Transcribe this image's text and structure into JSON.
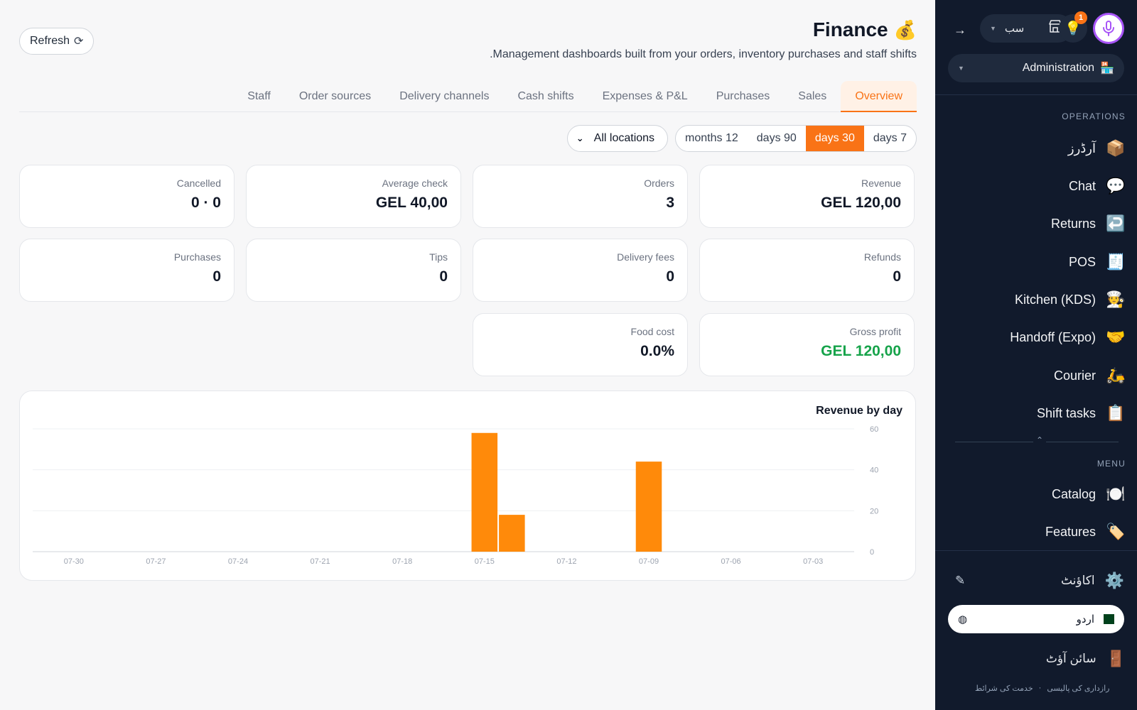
{
  "header": {
    "refresh_label": "Refresh",
    "title": "Finance",
    "title_emoji": "💰",
    "subtitle": ".Management dashboards built from your orders, inventory purchases and staff shifts"
  },
  "tabs": [
    {
      "label": "Staff",
      "active": false
    },
    {
      "label": "Order sources",
      "active": false
    },
    {
      "label": "Delivery channels",
      "active": false
    },
    {
      "label": "Cash shifts",
      "active": false
    },
    {
      "label": "Expenses & P&L",
      "active": false
    },
    {
      "label": "Purchases",
      "active": false
    },
    {
      "label": "Sales",
      "active": false
    },
    {
      "label": "Overview",
      "active": true
    }
  ],
  "filters": {
    "location": "All locations",
    "ranges": [
      {
        "label": "months 12",
        "active": false
      },
      {
        "label": "days 90",
        "active": false
      },
      {
        "label": "days 30",
        "active": true
      },
      {
        "label": "days 7",
        "active": false
      }
    ]
  },
  "cards": {
    "cancelled": {
      "label": "Cancelled",
      "value": "0 · 0"
    },
    "average_check": {
      "label": "Average check",
      "value": "GEL 40,00"
    },
    "orders": {
      "label": "Orders",
      "value": "3"
    },
    "revenue": {
      "label": "Revenue",
      "value": "GEL 120,00"
    },
    "purchases": {
      "label": "Purchases",
      "value": "0"
    },
    "tips": {
      "label": "Tips",
      "value": "0"
    },
    "delivery_fees": {
      "label": "Delivery fees",
      "value": "0"
    },
    "refunds": {
      "label": "Refunds",
      "value": "0"
    },
    "food_cost": {
      "label": "Food cost",
      "value": "0.0%"
    },
    "gross_profit": {
      "label": "Gross profit",
      "value": "GEL 120,00",
      "color": "#16a34a"
    }
  },
  "chart_data": {
    "type": "bar",
    "title": "Revenue by day",
    "categories": [
      "07-31",
      "07-30",
      "07-29",
      "07-28",
      "07-27",
      "07-26",
      "07-25",
      "07-24",
      "07-23",
      "07-22",
      "07-21",
      "07-20",
      "07-19",
      "07-18",
      "07-17",
      "07-16",
      "07-15",
      "07-14",
      "07-13",
      "07-12",
      "07-11",
      "07-10",
      "07-09",
      "07-08",
      "07-07",
      "07-06",
      "07-05",
      "07-04",
      "07-03",
      "07-02"
    ],
    "values": [
      0,
      0,
      0,
      0,
      0,
      0,
      0,
      0,
      0,
      0,
      0,
      0,
      0,
      0,
      0,
      0,
      58,
      18,
      0,
      0,
      0,
      0,
      44,
      0,
      0,
      0,
      0,
      0,
      0,
      0
    ],
    "x_tick_labels": [
      "07-30",
      "07-27",
      "07-24",
      "07-21",
      "07-18",
      "07-15",
      "07-12",
      "07-09",
      "07-06",
      "07-03"
    ],
    "y_ticks": [
      0,
      20,
      40,
      60
    ],
    "ylim": [
      0,
      60
    ],
    "y_axis_side": "right",
    "grid": true,
    "bar_color": "#ff8a0a"
  },
  "sidebar": {
    "store_label": "سب",
    "notification_count": "1",
    "role_label": "Administration",
    "role_emoji": "🏪",
    "sections": {
      "operations": "OPERATIONS",
      "menu": "MENU"
    },
    "operations_items": [
      {
        "label": "آرڈرز",
        "emoji": "📦"
      },
      {
        "label": "Chat",
        "emoji": "💬"
      },
      {
        "label": "Returns",
        "emoji": "↩️"
      },
      {
        "label": "POS",
        "emoji": "🧾"
      },
      {
        "label": "Kitchen (KDS)",
        "emoji": "🧑‍🍳"
      },
      {
        "label": "Handoff (Expo)",
        "emoji": "🤝"
      },
      {
        "label": "Courier",
        "emoji": "🛵"
      },
      {
        "label": "Shift tasks",
        "emoji": "📋"
      }
    ],
    "menu_items": [
      {
        "label": "Catalog",
        "emoji": "🍽️"
      },
      {
        "label": "Features",
        "emoji": "🏷️"
      }
    ],
    "account_label": "اکاؤنٹ",
    "account_emoji": "⚙️",
    "language_label": "اردو",
    "signout_label": "سائن آؤٹ",
    "signout_emoji": "🚪",
    "legal_privacy": "رازداری کی پالیسی",
    "legal_separator": "·",
    "legal_terms": "خدمت کی شرائط"
  }
}
